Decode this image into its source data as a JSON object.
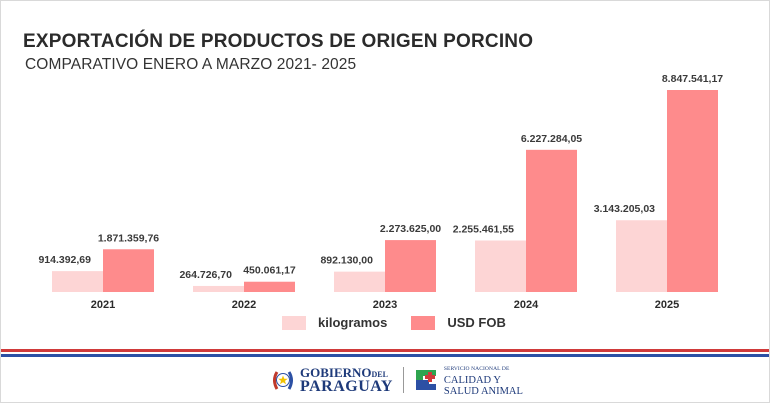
{
  "header": {
    "title": "EXPORTACIÓN DE PRODUCTOS DE ORIGEN PORCINO",
    "subtitle": "COMPARATIVO ENERO A MARZO 2021- 2025"
  },
  "chart_data": {
    "type": "bar",
    "title": "EXPORTACIÓN DE PRODUCTOS DE ORIGEN PORCINO",
    "subtitle": "COMPARATIVO ENERO A MARZO 2021- 2025",
    "xlabel": "",
    "ylabel": "",
    "categories": [
      "2021",
      "2022",
      "2023",
      "2024",
      "2025"
    ],
    "series": [
      {
        "name": "kilogramos",
        "color": "#fdd5d5",
        "values": [
          914392.69,
          264726.7,
          892130.0,
          2255461.55,
          3143205.03
        ],
        "labels": [
          "914.392,69",
          "264.726,70",
          "892.130,00",
          "2.255.461,55",
          "3.143.205,03"
        ]
      },
      {
        "name": "USD FOB",
        "color": "#fe8b8c",
        "values": [
          1871359.76,
          450061.17,
          2273625.0,
          6227284.05,
          8847541.17
        ],
        "labels": [
          "1.871.359,76",
          "450.061,17",
          "2.273.625,00",
          "6.227.284,05",
          "8.847.541,17"
        ]
      }
    ],
    "ylim": [
      0,
      8847541.17
    ],
    "grid": false,
    "legend_position": "bottom"
  },
  "legend": {
    "items": [
      {
        "label": "kilogramos",
        "color": "#fdd5d5"
      },
      {
        "label": "USD FOB",
        "color": "#fe8b8c"
      }
    ]
  },
  "footer": {
    "gov_line1": "GOBIERNO",
    "gov_del": "DEL",
    "gov_line2": "PARAGUAY",
    "senacsa_small": "SERVICIO NACIONAL DE",
    "senacsa_line1": "CALIDAD Y",
    "senacsa_line2": "SALUD ANIMAL",
    "colors": {
      "red": "#d03a3a",
      "blue": "#2c50a4"
    }
  }
}
